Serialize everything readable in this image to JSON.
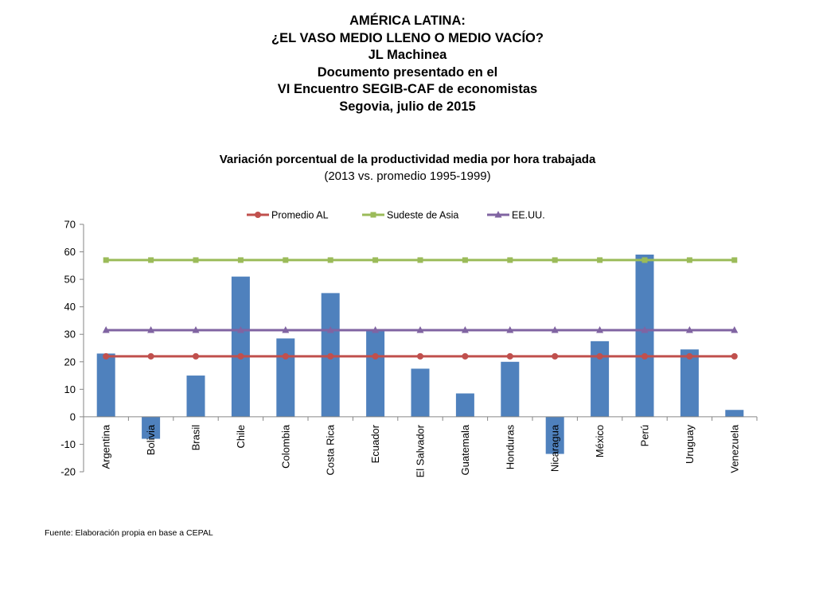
{
  "header": {
    "lines": [
      "AMÉRICA LATINA:",
      "¿EL VASO MEDIO LLENO O MEDIO VACÍO?",
      "JL Machinea",
      "Documento presentado en el",
      "VI Encuentro SEGIB-CAF de economistas",
      "Segovia, julio de 2015"
    ]
  },
  "source": "Fuente: Elaboración propia en base a CEPAL",
  "chart_data": {
    "type": "bar",
    "title": "Variación porcentual de la productividad media por hora trabajada",
    "subtitle": "(2013 vs. promedio 1995-1999)",
    "xlabel": "",
    "ylabel": "",
    "ylim": [
      -20,
      70
    ],
    "yticks": [
      -20,
      -10,
      0,
      10,
      20,
      30,
      40,
      50,
      60,
      70
    ],
    "grid": false,
    "legend_position": "top",
    "categories": [
      "Argentina",
      "Bolivia",
      "Brasil",
      "Chile",
      "Colombia",
      "Costa Rica",
      "Ecuador",
      "El Salvador",
      "Guatemala",
      "Honduras",
      "Nicaragua",
      "México",
      "Perú",
      "Uruguay",
      "Venezuela"
    ],
    "values": [
      23,
      -8,
      15,
      51,
      28.5,
      45,
      31.5,
      17.5,
      8.5,
      20,
      -13.5,
      27.5,
      59,
      24.5,
      2.5
    ],
    "bar_color": "#4F81BD",
    "series": [
      {
        "name": "Promedio AL",
        "type": "line",
        "marker": "circle",
        "color": "#C0504D",
        "values": [
          22,
          22,
          22,
          22,
          22,
          22,
          22,
          22,
          22,
          22,
          22,
          22,
          22,
          22,
          22
        ]
      },
      {
        "name": "Sudeste de Asia",
        "type": "line",
        "marker": "square",
        "color": "#9BBB59",
        "values": [
          57,
          57,
          57,
          57,
          57,
          57,
          57,
          57,
          57,
          57,
          57,
          57,
          57,
          57,
          57
        ]
      },
      {
        "name": "EE.UU.",
        "type": "line",
        "marker": "triangle",
        "color": "#8064A2",
        "values": [
          31.5,
          31.5,
          31.5,
          31.5,
          31.5,
          31.5,
          31.5,
          31.5,
          31.5,
          31.5,
          31.5,
          31.5,
          31.5,
          31.5,
          31.5
        ]
      }
    ]
  }
}
